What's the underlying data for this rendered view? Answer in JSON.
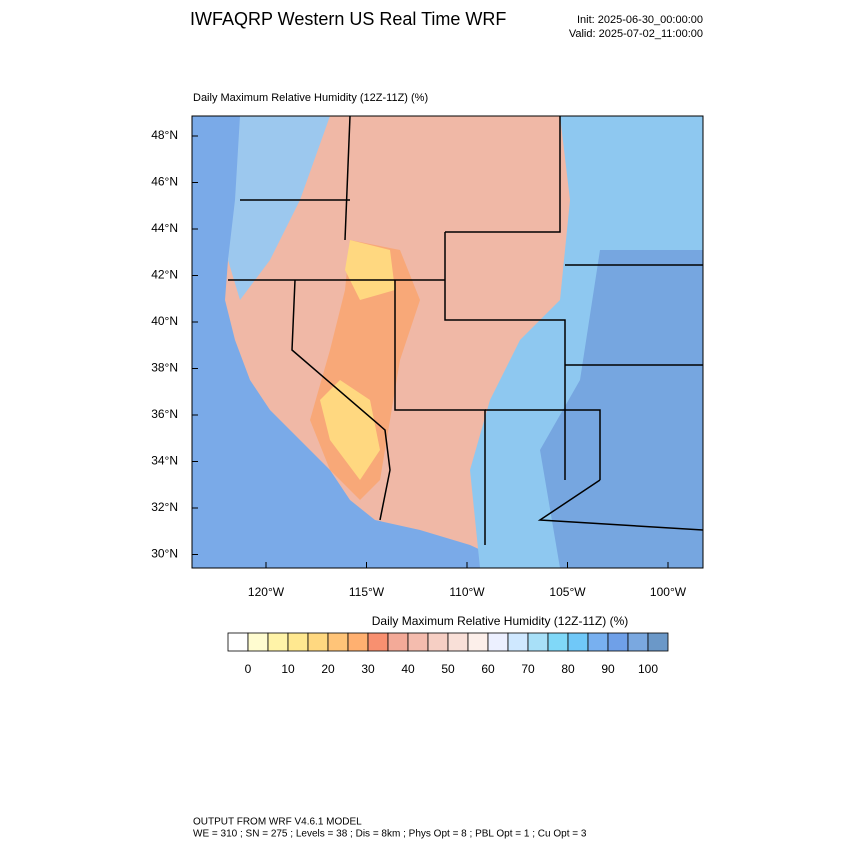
{
  "header": {
    "title": "IWFAQRP Western US Real Time WRF",
    "init": "Init: 2025-06-30_00:00:00",
    "valid": "Valid: 2025-07-02_11:00:00"
  },
  "map": {
    "title": "Daily Maximum Relative Humidity (12Z-11Z)   (%)",
    "lat_labels": [
      "48°N",
      "46°N",
      "44°N",
      "42°N",
      "40°N",
      "38°N",
      "36°N",
      "34°N",
      "32°N",
      "30°N"
    ],
    "lon_labels": [
      "120°W",
      "115°W",
      "110°W",
      "105°W",
      "100°W"
    ]
  },
  "colorbar": {
    "title": "Daily Maximum Relative Humidity (12Z-11Z)  (%)",
    "labels": [
      "0",
      "10",
      "20",
      "30",
      "40",
      "50",
      "60",
      "70",
      "80",
      "90",
      "100"
    ],
    "colors": [
      "#ffffff",
      "#fffcd0",
      "#fff3a8",
      "#ffe890",
      "#ffd880",
      "#ffc478",
      "#ffb070",
      "#f89070",
      "#f3aa98",
      "#f4bcae",
      "#f6cfc4",
      "#f9e0d8",
      "#fcefea",
      "#ecf0ff",
      "#cfe8ff",
      "#a8e0f8",
      "#80d8f8",
      "#70c8f8",
      "#78b0f0",
      "#6fa0e8",
      "#7aa8e0",
      "#6b98c8"
    ]
  },
  "footer": {
    "line1": "OUTPUT FROM WRF V4.6.1 MODEL",
    "line2": "WE = 310 ; SN = 275 ; Levels = 38 ; Dis = 8km ; Phys Opt = 8 ; PBL Opt = 1 ; Cu Opt = 3"
  }
}
